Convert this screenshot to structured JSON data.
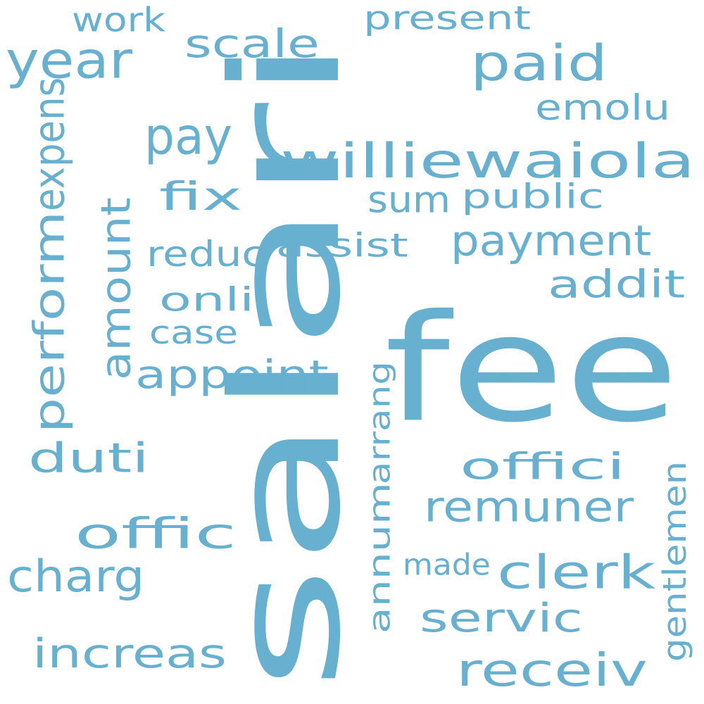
{
  "color": "#67b0cf",
  "words": [
    {
      "text": "salari",
      "orientation": "vertical"
    },
    {
      "text": "fee",
      "orientation": "horizontal"
    },
    {
      "text": "williewaiola",
      "orientation": "horizontal"
    },
    {
      "text": "paid",
      "orientation": "horizontal"
    },
    {
      "text": "year",
      "orientation": "horizontal"
    },
    {
      "text": "scale",
      "orientation": "horizontal"
    },
    {
      "text": "present",
      "orientation": "horizontal"
    },
    {
      "text": "work",
      "orientation": "horizontal"
    },
    {
      "text": "emolu",
      "orientation": "horizontal"
    },
    {
      "text": "pay",
      "orientation": "horizontal"
    },
    {
      "text": "expens",
      "orientation": "vertical"
    },
    {
      "text": "perform",
      "orientation": "vertical"
    },
    {
      "text": "amount",
      "orientation": "vertical"
    },
    {
      "text": "fix",
      "orientation": "horizontal"
    },
    {
      "text": "sum",
      "orientation": "horizontal"
    },
    {
      "text": "public",
      "orientation": "horizontal"
    },
    {
      "text": "payment",
      "orientation": "horizontal"
    },
    {
      "text": "reduc",
      "orientation": "horizontal"
    },
    {
      "text": "assist",
      "orientation": "horizontal"
    },
    {
      "text": "addit",
      "orientation": "horizontal"
    },
    {
      "text": "onli",
      "orientation": "horizontal"
    },
    {
      "text": "case",
      "orientation": "horizontal"
    },
    {
      "text": "appoint",
      "orientation": "horizontal"
    },
    {
      "text": "arrang",
      "orientation": "vertical"
    },
    {
      "text": "duti",
      "orientation": "horizontal"
    },
    {
      "text": "offici",
      "orientation": "horizontal"
    },
    {
      "text": "gentlemen",
      "orientation": "vertical"
    },
    {
      "text": "remuner",
      "orientation": "horizontal"
    },
    {
      "text": "offic",
      "orientation": "horizontal"
    },
    {
      "text": "annum",
      "orientation": "vertical"
    },
    {
      "text": "made",
      "orientation": "horizontal"
    },
    {
      "text": "clerk",
      "orientation": "horizontal"
    },
    {
      "text": "charg",
      "orientation": "horizontal"
    },
    {
      "text": "servic",
      "orientation": "horizontal"
    },
    {
      "text": "increas",
      "orientation": "horizontal"
    },
    {
      "text": "receiv",
      "orientation": "horizontal"
    }
  ]
}
